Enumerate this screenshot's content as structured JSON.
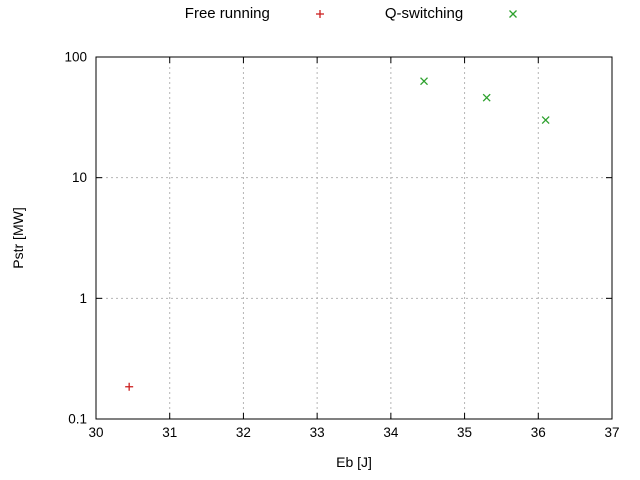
{
  "chart_data": {
    "type": "scatter",
    "title": "",
    "xlabel": "Eb [J]",
    "ylabel": "Pstr [MW]",
    "xlim": [
      30,
      37
    ],
    "ylim": [
      0.1,
      100
    ],
    "xscale": "linear",
    "yscale": "log",
    "grid": true,
    "legend_position": "top-center",
    "xticks": [
      30,
      31,
      32,
      33,
      34,
      35,
      36,
      37
    ],
    "xtick_labels": [
      "30",
      "31",
      "32",
      "33",
      "34",
      "35",
      "36",
      "37"
    ],
    "yticks": [
      0.1,
      1,
      10,
      100
    ],
    "ytick_labels": [
      "0.1",
      "1",
      "10",
      "100"
    ],
    "colors": {
      "free_running": "#cc2020",
      "q_switching": "#2ea12e",
      "grid": "#b5b5b5",
      "border": "#000000"
    },
    "series": [
      {
        "name": "Free running",
        "marker": "plus",
        "color": "#cc2020",
        "points": [
          [
            30.45,
            0.185
          ]
        ]
      },
      {
        "name": "Q-switching",
        "marker": "cross",
        "color": "#2ea12e",
        "points": [
          [
            34.45,
            63
          ],
          [
            35.3,
            46
          ],
          [
            36.1,
            30
          ]
        ]
      }
    ]
  }
}
